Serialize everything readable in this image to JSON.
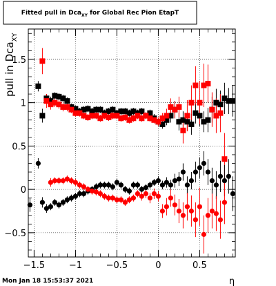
{
  "title_pre": "Fitted pull in Dca",
  "title_sub": "XY",
  "title_post": " for Global Rec Pion EtapT",
  "ylabel_main": "pull in Dca",
  "ylabel_sub": "XY",
  "xlabel": "η",
  "timestamp": "Mon Jan 18 15:53:37 2021",
  "colors": {
    "series_black": "#000000",
    "series_red": "#ff0000",
    "grid": "#000000"
  },
  "chart_data": {
    "type": "scatter",
    "xlim": [
      -1.57,
      0.93
    ],
    "ylim": [
      -0.78,
      1.85
    ],
    "grid": true,
    "x_ticks": [
      -1.5,
      -1,
      -0.5,
      0,
      0.5
    ],
    "x_tick_labels": [
      "−1.5",
      "−1",
      "−0.5",
      "0",
      "0.5"
    ],
    "y_ticks": [
      -0.5,
      0,
      0.5,
      1,
      1.5
    ],
    "y_tick_labels": [
      "−0.5",
      "0",
      "0.5",
      "1",
      "1.5"
    ],
    "series": [
      {
        "marker": "square",
        "color": "#000000",
        "x": [
          -1.45,
          -1.4,
          -1.35,
          -1.3,
          -1.25,
          -1.2,
          -1.15,
          -1.1,
          -1.05,
          -1.0,
          -0.95,
          -0.9,
          -0.85,
          -0.8,
          -0.75,
          -0.7,
          -0.65,
          -0.6,
          -0.55,
          -0.5,
          -0.45,
          -0.4,
          -0.35,
          -0.3,
          -0.25,
          -0.2,
          -0.15,
          -0.1,
          -0.05,
          0.0,
          0.05,
          0.1,
          0.15,
          0.2,
          0.25,
          0.3,
          0.35,
          0.4,
          0.45,
          0.5,
          0.55,
          0.6,
          0.65,
          0.7,
          0.75,
          0.8,
          0.85,
          0.9
        ],
        "y": [
          1.19,
          0.85,
          1.05,
          1.02,
          1.08,
          1.07,
          1.05,
          1.02,
          0.95,
          0.93,
          0.9,
          0.92,
          0.93,
          0.9,
          0.92,
          0.92,
          0.88,
          0.9,
          0.92,
          0.88,
          0.9,
          0.9,
          0.88,
          0.9,
          0.88,
          0.9,
          0.85,
          0.88,
          0.82,
          0.78,
          0.75,
          0.8,
          0.85,
          0.92,
          0.78,
          0.8,
          0.78,
          0.75,
          0.88,
          0.85,
          0.78,
          0.8,
          0.92,
          1.0,
          0.98,
          1.05,
          1.02,
          1.02
        ],
        "err": [
          0.06,
          0.08,
          0.05,
          0.05,
          0.04,
          0.04,
          0.04,
          0.04,
          0.04,
          0.04,
          0.04,
          0.04,
          0.04,
          0.04,
          0.04,
          0.04,
          0.04,
          0.04,
          0.04,
          0.04,
          0.04,
          0.04,
          0.04,
          0.04,
          0.04,
          0.04,
          0.04,
          0.04,
          0.05,
          0.05,
          0.05,
          0.06,
          0.08,
          0.1,
          0.1,
          0.1,
          0.1,
          0.12,
          0.12,
          0.12,
          0.12,
          0.14,
          0.15,
          0.16,
          0.16,
          0.18,
          0.15,
          0.18
        ]
      },
      {
        "marker": "square",
        "color": "#ff0000",
        "x": [
          -1.4,
          -1.35,
          -1.3,
          -1.25,
          -1.2,
          -1.15,
          -1.1,
          -1.05,
          -1.0,
          -0.95,
          -0.9,
          -0.85,
          -0.8,
          -0.75,
          -0.7,
          -0.65,
          -0.6,
          -0.55,
          -0.5,
          -0.45,
          -0.4,
          -0.35,
          -0.3,
          -0.25,
          -0.2,
          -0.15,
          -0.1,
          -0.05,
          0.0,
          0.05,
          0.1,
          0.15,
          0.2,
          0.25,
          0.3,
          0.35,
          0.4,
          0.45,
          0.5,
          0.55,
          0.6,
          0.65,
          0.7,
          0.75,
          0.8
        ],
        "y": [
          1.48,
          1.02,
          0.98,
          1.0,
          0.98,
          0.95,
          0.95,
          0.92,
          0.88,
          0.88,
          0.85,
          0.83,
          0.85,
          0.85,
          0.82,
          0.85,
          0.83,
          0.85,
          0.85,
          0.82,
          0.83,
          0.8,
          0.82,
          0.85,
          0.82,
          0.85,
          0.82,
          0.8,
          0.78,
          0.82,
          0.85,
          0.95,
          0.92,
          0.95,
          0.68,
          0.85,
          1.0,
          1.2,
          1.0,
          1.2,
          1.22,
          0.92,
          0.85,
          0.88,
          0.35
        ],
        "err": [
          0.15,
          0.08,
          0.06,
          0.05,
          0.05,
          0.05,
          0.05,
          0.04,
          0.04,
          0.04,
          0.04,
          0.04,
          0.04,
          0.04,
          0.04,
          0.04,
          0.04,
          0.04,
          0.04,
          0.04,
          0.04,
          0.04,
          0.04,
          0.04,
          0.04,
          0.04,
          0.04,
          0.04,
          0.05,
          0.06,
          0.08,
          0.1,
          0.1,
          0.12,
          0.15,
          0.18,
          0.2,
          0.22,
          0.25,
          0.25,
          0.22,
          0.2,
          0.2,
          0.22,
          0.3
        ]
      },
      {
        "marker": "circle",
        "color": "#000000",
        "x": [
          -1.55,
          -1.45,
          -1.4,
          -1.35,
          -1.3,
          -1.25,
          -1.2,
          -1.15,
          -1.1,
          -1.05,
          -1.0,
          -0.95,
          -0.9,
          -0.85,
          -0.8,
          -0.75,
          -0.7,
          -0.65,
          -0.6,
          -0.55,
          -0.5,
          -0.45,
          -0.4,
          -0.35,
          -0.3,
          -0.25,
          -0.2,
          -0.15,
          -0.1,
          -0.05,
          0.0,
          0.05,
          0.1,
          0.15,
          0.2,
          0.25,
          0.3,
          0.35,
          0.4,
          0.45,
          0.5,
          0.55,
          0.6,
          0.65,
          0.7,
          0.75,
          0.8,
          0.85,
          0.9
        ],
        "y": [
          -0.18,
          0.3,
          -0.15,
          -0.22,
          -0.2,
          -0.15,
          -0.18,
          -0.15,
          -0.12,
          -0.1,
          -0.08,
          -0.05,
          -0.05,
          -0.02,
          0.0,
          0.03,
          0.05,
          0.05,
          0.05,
          0.03,
          0.08,
          0.05,
          0.0,
          -0.02,
          0.05,
          0.05,
          0.0,
          0.02,
          0.05,
          0.08,
          0.1,
          0.05,
          0.08,
          0.05,
          0.1,
          0.12,
          0.2,
          0.05,
          0.1,
          0.2,
          0.25,
          0.3,
          0.2,
          0.1,
          0.05,
          0.15,
          0.1,
          0.15,
          -0.05
        ],
        "err": [
          0.08,
          0.06,
          0.06,
          0.05,
          0.04,
          0.04,
          0.04,
          0.04,
          0.04,
          0.04,
          0.04,
          0.04,
          0.04,
          0.04,
          0.04,
          0.04,
          0.04,
          0.04,
          0.04,
          0.04,
          0.04,
          0.04,
          0.04,
          0.04,
          0.04,
          0.04,
          0.04,
          0.04,
          0.04,
          0.04,
          0.05,
          0.05,
          0.06,
          0.06,
          0.08,
          0.08,
          0.1,
          0.1,
          0.1,
          0.12,
          0.12,
          0.14,
          0.15,
          0.15,
          0.16,
          0.18,
          0.18,
          0.2,
          0.2
        ]
      },
      {
        "marker": "circle",
        "color": "#ff0000",
        "x": [
          -1.3,
          -1.25,
          -1.2,
          -1.15,
          -1.1,
          -1.05,
          -1.0,
          -0.95,
          -0.9,
          -0.85,
          -0.8,
          -0.75,
          -0.7,
          -0.65,
          -0.6,
          -0.55,
          -0.5,
          -0.45,
          -0.4,
          -0.35,
          -0.3,
          -0.25,
          -0.2,
          -0.15,
          -0.1,
          -0.05,
          0.0,
          0.05,
          0.1,
          0.15,
          0.2,
          0.25,
          0.3,
          0.35,
          0.4,
          0.45,
          0.5,
          0.55,
          0.6,
          0.65,
          0.7,
          0.75,
          0.8
        ],
        "y": [
          0.08,
          0.1,
          0.1,
          0.1,
          0.12,
          0.1,
          0.08,
          0.05,
          0.03,
          0.0,
          -0.02,
          -0.03,
          -0.05,
          -0.08,
          -0.1,
          -0.1,
          -0.12,
          -0.12,
          -0.15,
          -0.12,
          -0.1,
          -0.05,
          -0.08,
          -0.05,
          -0.1,
          -0.05,
          -0.08,
          -0.25,
          -0.2,
          -0.1,
          -0.18,
          -0.25,
          -0.3,
          -0.2,
          -0.25,
          -0.35,
          -0.2,
          -0.52,
          -0.3,
          -0.25,
          -0.28,
          -0.35,
          -0.15
        ],
        "err": [
          0.05,
          0.04,
          0.04,
          0.04,
          0.04,
          0.04,
          0.04,
          0.04,
          0.04,
          0.04,
          0.04,
          0.04,
          0.04,
          0.04,
          0.04,
          0.04,
          0.04,
          0.04,
          0.04,
          0.04,
          0.04,
          0.04,
          0.05,
          0.05,
          0.06,
          0.06,
          0.06,
          0.08,
          0.1,
          0.1,
          0.12,
          0.14,
          0.15,
          0.16,
          0.18,
          0.2,
          0.22,
          0.22,
          0.2,
          0.2,
          0.2,
          0.22,
          0.25
        ]
      }
    ]
  }
}
